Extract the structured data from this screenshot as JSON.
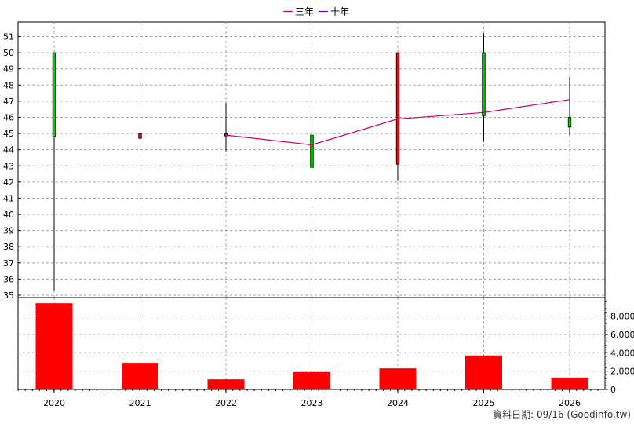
{
  "chart_data": [
    {
      "type": "candlestick",
      "categories": [
        "2020",
        "2021",
        "2022",
        "2023",
        "2024",
        "2025",
        "2026"
      ],
      "candles": [
        {
          "x": "2020",
          "open": 44.8,
          "close": 50.0,
          "high": 50.0,
          "low": 35.3,
          "color": "#00cc00"
        },
        {
          "x": "2021",
          "open": 45.0,
          "close": 44.7,
          "high": 46.9,
          "low": 44.2,
          "color": "#ff0000"
        },
        {
          "x": "2022",
          "open": 45.0,
          "close": 44.9,
          "high": 46.9,
          "low": 43.9,
          "color": "#ff0000"
        },
        {
          "x": "2023",
          "open": 42.9,
          "close": 44.9,
          "high": 45.8,
          "low": 40.4,
          "color": "#00cc00"
        },
        {
          "x": "2024",
          "open": 50.0,
          "close": 43.1,
          "high": 50.0,
          "low": 42.1,
          "color": "#ff0000"
        },
        {
          "x": "2025",
          "open": 46.1,
          "close": 50.0,
          "high": 51.2,
          "low": 44.5,
          "color": "#00cc00"
        },
        {
          "x": "2026",
          "open": 45.4,
          "close": 46.0,
          "high": 48.5,
          "low": 44.9,
          "color": "#00cc00"
        }
      ],
      "series": [
        {
          "name": "三年",
          "color": "#cc0066",
          "values": [
            null,
            null,
            44.9,
            44.3,
            45.9,
            46.3,
            47.1
          ]
        },
        {
          "name": "十年",
          "color": "#6600cc",
          "values": [
            null,
            null,
            null,
            null,
            null,
            null,
            null
          ]
        }
      ],
      "ylim": [
        35,
        51.5
      ],
      "yticks": [
        35,
        36,
        37,
        38,
        39,
        40,
        41,
        42,
        43,
        44,
        45,
        46,
        47,
        48,
        49,
        50,
        51
      ],
      "legend_position": "top-center",
      "grid": true
    },
    {
      "type": "bar",
      "categories": [
        "2020",
        "2021",
        "2022",
        "2023",
        "2024",
        "2025",
        "2026"
      ],
      "values": [
        9400,
        2900,
        1100,
        1900,
        2300,
        3700,
        1300
      ],
      "color": "#ff0000",
      "ylim": [
        0,
        9800
      ],
      "yticks": [
        0,
        2000,
        4000,
        6000,
        8000
      ],
      "ytick_labels": [
        "0",
        "2,000",
        "4,000",
        "6,000",
        "8,000"
      ],
      "grid": true
    }
  ],
  "legend": {
    "items": [
      {
        "label": "三年",
        "color": "#cc0066"
      },
      {
        "label": "十年",
        "color": "#6600cc"
      }
    ]
  },
  "credit": "資料日期: 09/16 (Goodinfo.tw)"
}
